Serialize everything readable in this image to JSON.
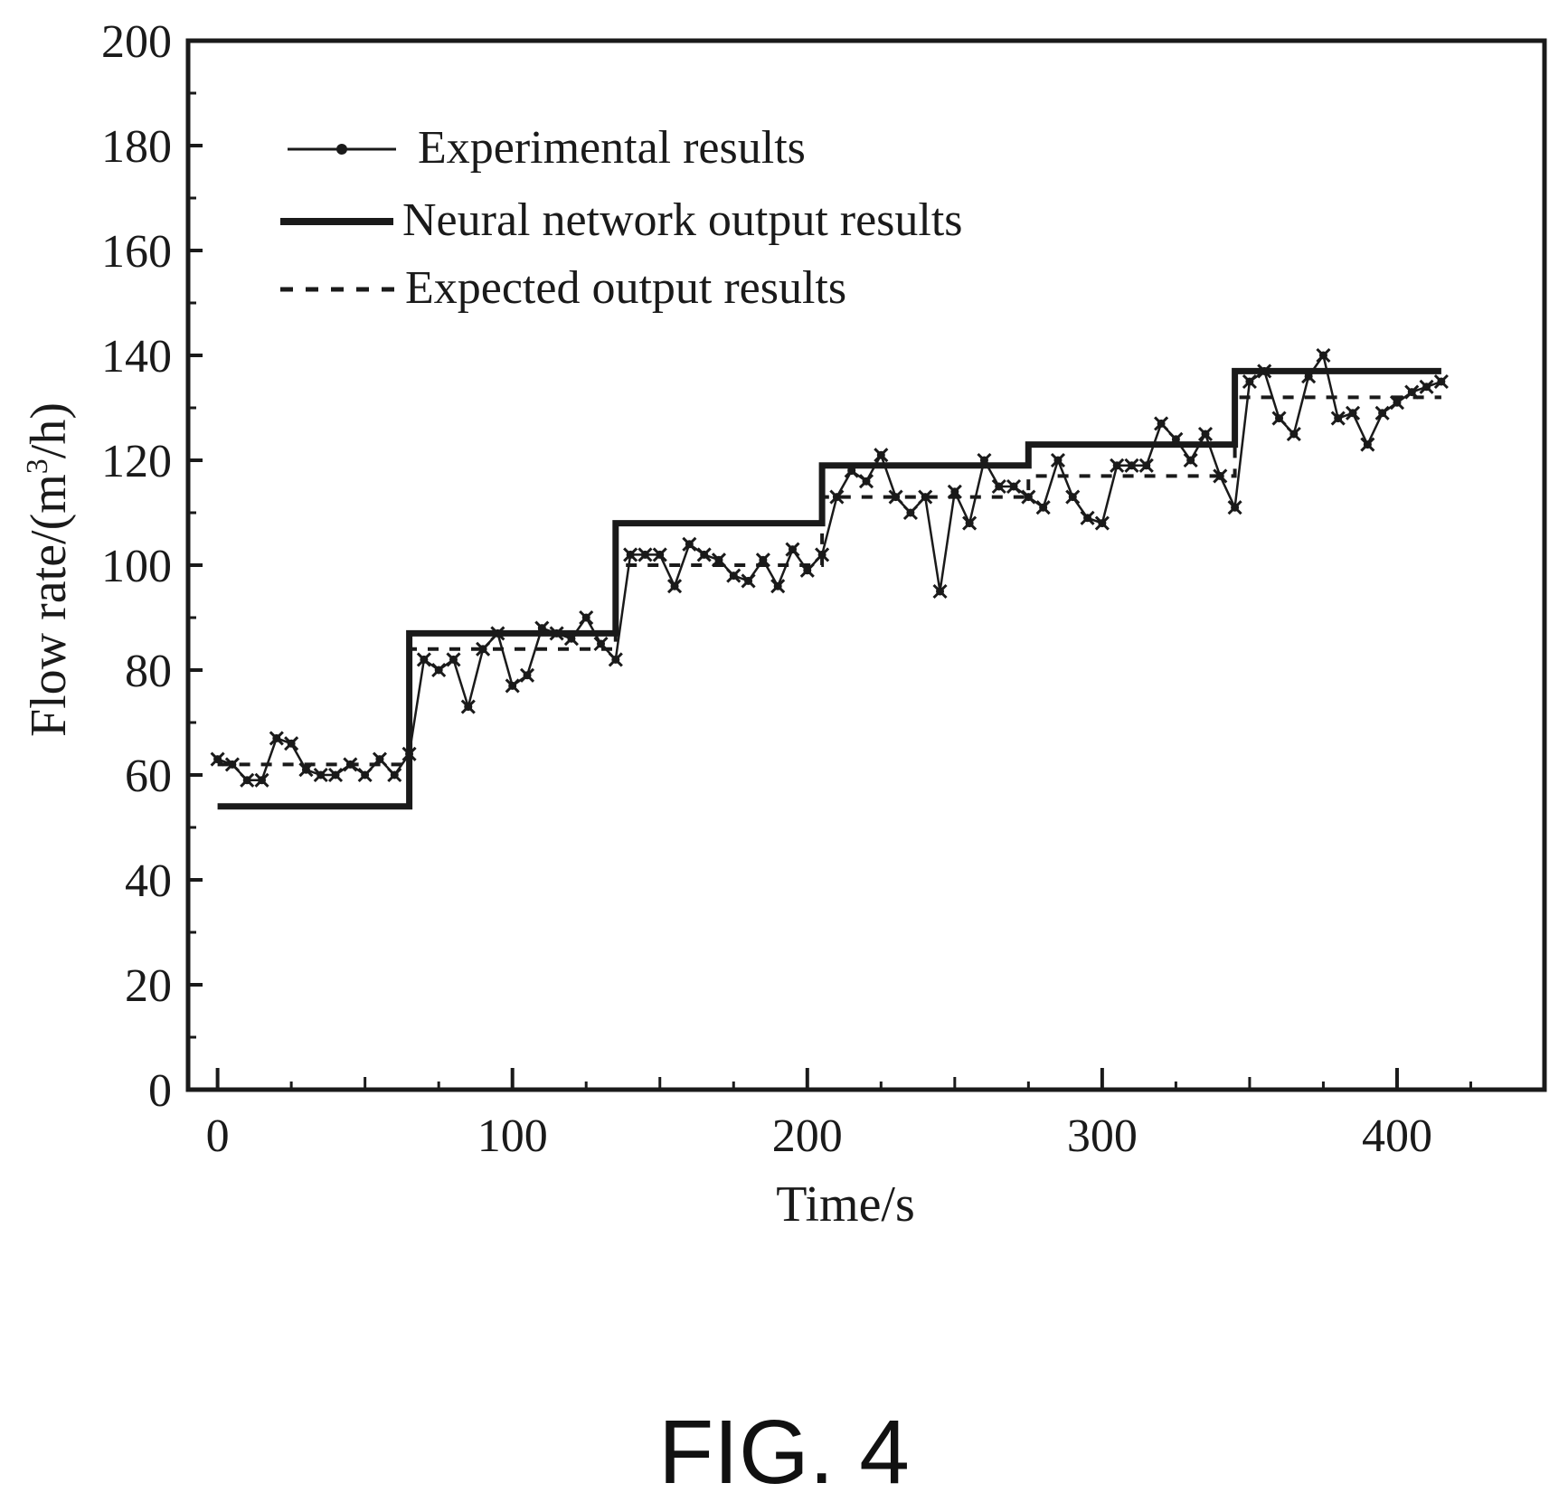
{
  "figure_label": "FIG. 4",
  "colors": {
    "ink": "#1a1a1a",
    "background": "#ffffff"
  },
  "chart_data": {
    "type": "line",
    "xlabel": "Time/s",
    "ylabel_parts": {
      "before": "Flow rate/(m",
      "sup": "3",
      "after": "/h)"
    },
    "xlim": [
      -10,
      450
    ],
    "ylim": [
      0,
      200
    ],
    "x_ticks": [
      0,
      100,
      200,
      300,
      400
    ],
    "y_ticks": [
      0,
      20,
      40,
      60,
      80,
      100,
      120,
      140,
      160,
      180,
      200
    ],
    "grid": false,
    "legend_position": "top-left",
    "series": [
      {
        "name": "Experimental results",
        "style": "line-with-star-markers",
        "x": [
          0,
          5,
          10,
          15,
          20,
          25,
          30,
          35,
          40,
          45,
          50,
          55,
          60,
          65,
          70,
          75,
          80,
          85,
          90,
          95,
          100,
          105,
          110,
          115,
          120,
          125,
          130,
          135,
          140,
          145,
          150,
          155,
          160,
          165,
          170,
          175,
          180,
          185,
          190,
          195,
          200,
          205,
          210,
          215,
          220,
          225,
          230,
          235,
          240,
          245,
          250,
          255,
          260,
          265,
          270,
          275,
          280,
          285,
          290,
          295,
          300,
          305,
          310,
          315,
          320,
          325,
          330,
          335,
          340,
          345,
          350,
          355,
          360,
          365,
          370,
          375,
          380,
          385,
          390,
          395,
          400,
          405,
          410,
          415
        ],
        "y": [
          63,
          62,
          59,
          59,
          67,
          66,
          61,
          60,
          60,
          62,
          60,
          63,
          60,
          64,
          82,
          80,
          82,
          73,
          84,
          87,
          77,
          79,
          88,
          87,
          86,
          90,
          85,
          82,
          102,
          102,
          102,
          96,
          104,
          102,
          101,
          98,
          97,
          101,
          96,
          103,
          99,
          102,
          113,
          118,
          116,
          121,
          113,
          110,
          113,
          95,
          114,
          108,
          120,
          115,
          115,
          113,
          111,
          120,
          113,
          109,
          108,
          119,
          119,
          119,
          127,
          124,
          120,
          125,
          117,
          111,
          135,
          137,
          128,
          125,
          136,
          140,
          128,
          129,
          123,
          129,
          131,
          133,
          134,
          135
        ]
      },
      {
        "name": "Neural network output results",
        "style": "solid-step",
        "x": [
          0,
          65,
          65,
          135,
          135,
          205,
          205,
          275,
          275,
          345,
          345,
          415
        ],
        "y": [
          54,
          54,
          87,
          87,
          108,
          108,
          119,
          119,
          123,
          123,
          137,
          137
        ]
      },
      {
        "name": "Expected output results",
        "style": "dashed-step",
        "x": [
          0,
          65,
          65,
          135,
          135,
          205,
          205,
          275,
          275,
          345,
          345,
          415
        ],
        "y": [
          62,
          62,
          84,
          84,
          100,
          100,
          113,
          113,
          117,
          117,
          132,
          132
        ]
      }
    ]
  }
}
